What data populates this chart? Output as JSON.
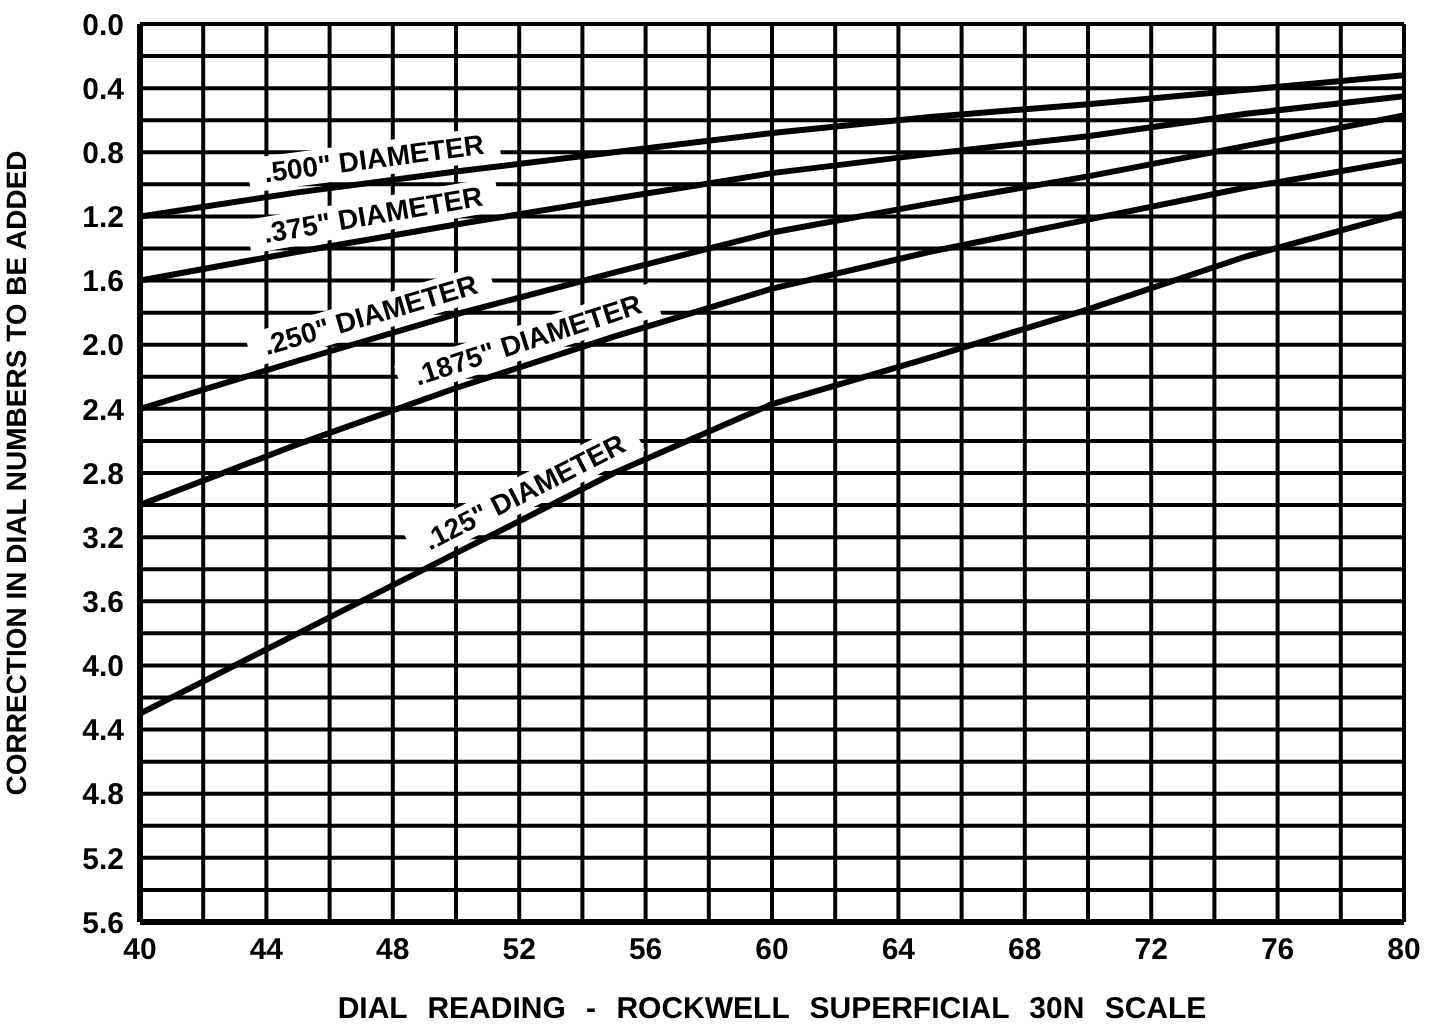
{
  "chart_data": {
    "type": "line",
    "xlabel": "DIAL READING - ROCKWELL SUPERFICIAL 30N SCALE",
    "ylabel": "CORRECTION IN DIAL NUMBERS TO BE ADDED",
    "x": [
      40,
      45,
      50,
      55,
      60,
      65,
      70,
      75,
      80
    ],
    "series": [
      {
        "name": ".500\" DIAMETER",
        "color": "#000000",
        "values": [
          1.2,
          1.05,
          0.92,
          0.8,
          0.68,
          0.58,
          0.5,
          0.41,
          0.32
        ]
      },
      {
        "name": ".375\" DIAMETER",
        "color": "#000000",
        "values": [
          1.6,
          1.42,
          1.25,
          1.09,
          0.93,
          0.81,
          0.7,
          0.56,
          0.45
        ]
      },
      {
        "name": ".250\" DIAMETER",
        "color": "#000000",
        "values": [
          2.4,
          2.1,
          1.81,
          1.55,
          1.3,
          1.12,
          0.95,
          0.76,
          0.57
        ]
      },
      {
        "name": ".1875\" DIAMETER",
        "color": "#000000",
        "values": [
          3.0,
          2.62,
          2.27,
          1.95,
          1.65,
          1.42,
          1.22,
          1.02,
          0.85
        ]
      },
      {
        "name": ".125\" DIAMETER",
        "color": "#000000",
        "values": [
          4.3,
          3.8,
          3.3,
          2.8,
          2.37,
          2.08,
          1.78,
          1.45,
          1.18
        ]
      }
    ],
    "xlim": [
      40,
      80
    ],
    "xticks": [
      40,
      {
        "value": 42,
        "label": null
      },
      44,
      {
        "value": 46,
        "label": null
      },
      48,
      {
        "value": 50,
        "label": null
      },
      52,
      {
        "value": 54,
        "label": null
      },
      56,
      {
        "value": 58,
        "label": null
      },
      60,
      {
        "value": 62,
        "label": null
      },
      64,
      {
        "value": 66,
        "label": null
      },
      68,
      {
        "value": 70,
        "label": null
      },
      72,
      {
        "value": 74,
        "label": null
      },
      76,
      {
        "value": 78,
        "label": null
      },
      80
    ],
    "ylim": [
      5.6,
      0
    ],
    "yticks": [
      {
        "value": 0,
        "label": "0.0"
      },
      {
        "value": 0.2,
        "label": null
      },
      0.4,
      {
        "value": 0.6,
        "label": null
      },
      0.8,
      {
        "value": 1.0,
        "label": null
      },
      1.2,
      {
        "value": 1.4,
        "label": null
      },
      1.6,
      {
        "value": 1.8,
        "label": null
      },
      {
        "value": 2.0,
        "label": "2.0"
      },
      {
        "value": 2.2,
        "label": null
      },
      2.4,
      {
        "value": 2.6,
        "label": null
      },
      2.8,
      {
        "value": 3.0,
        "label": null
      },
      3.2,
      {
        "value": 3.4,
        "label": null
      },
      3.6,
      {
        "value": 3.8,
        "label": null
      },
      {
        "value": 4.0,
        "label": "4.0"
      },
      {
        "value": 4.2,
        "label": null
      },
      4.4,
      {
        "value": 4.6,
        "label": null
      },
      4.8,
      {
        "value": 5.0,
        "label": null
      },
      5.2,
      {
        "value": 5.4,
        "label": null
      },
      5.6
    ],
    "grid": true,
    "marker": "none",
    "line_style": "solid",
    "legend": false
  }
}
